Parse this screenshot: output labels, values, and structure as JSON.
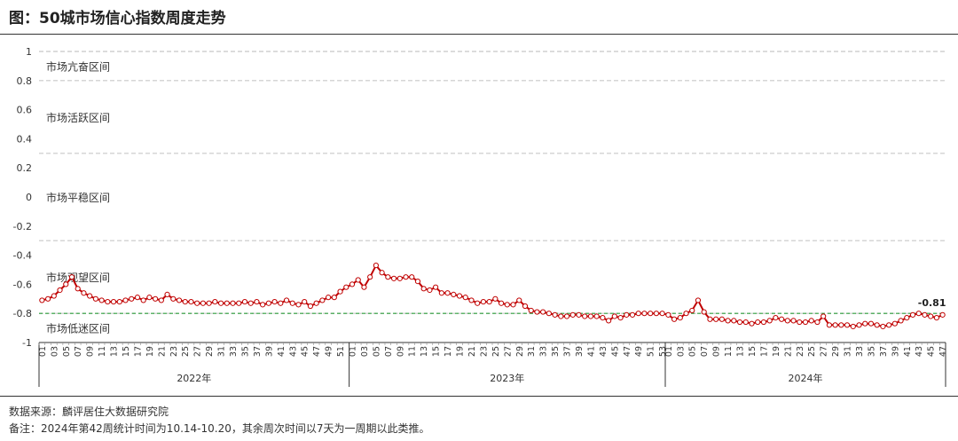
{
  "title": "图：50城市场信心指数周度走势",
  "source": "数据来源：麟评居住大数据研究院",
  "note": "备注：2024年第42周统计时间为10.14-10.20，其余周次时间以7天为一周期以此类推。",
  "colors": {
    "series": "#c00000",
    "marker_fill": "#ffffff",
    "reference": "#2e9e3c",
    "grid": "#c8c8c8"
  },
  "chart_data": {
    "type": "line",
    "title": "",
    "xlabel": "",
    "ylabel": "",
    "ylim": [
      -1,
      1
    ],
    "yticks": [
      {
        "value": 1,
        "label": "1"
      },
      {
        "value": 0.8,
        "label": "0.8"
      },
      {
        "value": 0.6,
        "label": "0.6"
      },
      {
        "value": 0.4,
        "label": "0.4"
      },
      {
        "value": 0.2,
        "label": "0.2"
      },
      {
        "value": 0,
        "label": "0"
      },
      {
        "value": -0.2,
        "label": "-0.2"
      },
      {
        "value": -0.4,
        "label": "-0.4"
      },
      {
        "value": -0.6,
        "label": "-0.6"
      },
      {
        "value": -0.8,
        "label": "-0.8"
      },
      {
        "value": -1,
        "label": "-1"
      }
    ],
    "grid": true,
    "zone_boundaries": [
      1,
      0.8,
      0.3,
      -0.3,
      -0.8
    ],
    "reference_line": -0.8,
    "zones": [
      {
        "label": "市场亢奋区间",
        "value": 0.9
      },
      {
        "label": "市场活跃区间",
        "value": 0.55
      },
      {
        "label": "市场平稳区间",
        "value": 0
      },
      {
        "label": "市场观望区间",
        "value": -0.55
      },
      {
        "label": "市场低迷区间",
        "value": -0.9
      }
    ],
    "year_groups": [
      {
        "label": "2022年",
        "weeks": 52
      },
      {
        "label": "2023年",
        "weeks": 53
      },
      {
        "label": "2024年",
        "weeks": 47
      }
    ],
    "x": [
      "01",
      "02",
      "03",
      "04",
      "05",
      "06",
      "07",
      "08",
      "09",
      "10",
      "11",
      "12",
      "13",
      "14",
      "15",
      "16",
      "17",
      "18",
      "19",
      "20",
      "21",
      "22",
      "23",
      "24",
      "25",
      "26",
      "27",
      "28",
      "29",
      "30",
      "31",
      "32",
      "33",
      "34",
      "35",
      "36",
      "37",
      "38",
      "39",
      "40",
      "41",
      "42",
      "43",
      "44",
      "45",
      "46",
      "47",
      "48",
      "49",
      "50",
      "51",
      "52",
      "01",
      "02",
      "03",
      "04",
      "05",
      "06",
      "07",
      "08",
      "09",
      "10",
      "11",
      "12",
      "13",
      "14",
      "15",
      "16",
      "17",
      "18",
      "19",
      "20",
      "21",
      "22",
      "23",
      "24",
      "25",
      "26",
      "27",
      "28",
      "29",
      "30",
      "31",
      "32",
      "33",
      "34",
      "35",
      "36",
      "37",
      "38",
      "39",
      "40",
      "41",
      "42",
      "43",
      "44",
      "45",
      "46",
      "47",
      "48",
      "49",
      "50",
      "51",
      "52",
      "53",
      "01",
      "02",
      "03",
      "04",
      "05",
      "06",
      "07",
      "08",
      "09",
      "10",
      "11",
      "12",
      "13",
      "14",
      "15",
      "16",
      "17",
      "18",
      "19",
      "20",
      "21",
      "22",
      "23",
      "24",
      "25",
      "26",
      "27",
      "28",
      "29",
      "30",
      "31",
      "32",
      "33",
      "34",
      "35",
      "36",
      "37",
      "38",
      "39",
      "40",
      "41",
      "42",
      "43",
      "44",
      "45",
      "46",
      "47"
    ],
    "series": [
      {
        "values": [
          -0.71,
          -0.7,
          -0.68,
          -0.64,
          -0.6,
          -0.55,
          -0.63,
          -0.66,
          -0.68,
          -0.7,
          -0.71,
          -0.72,
          -0.72,
          -0.72,
          -0.71,
          -0.7,
          -0.69,
          -0.71,
          -0.69,
          -0.7,
          -0.71,
          -0.67,
          -0.7,
          -0.71,
          -0.72,
          -0.72,
          -0.73,
          -0.73,
          -0.73,
          -0.72,
          -0.73,
          -0.73,
          -0.73,
          -0.73,
          -0.72,
          -0.73,
          -0.72,
          -0.74,
          -0.73,
          -0.72,
          -0.73,
          -0.71,
          -0.73,
          -0.74,
          -0.72,
          -0.75,
          -0.73,
          -0.71,
          -0.69,
          -0.69,
          -0.65,
          -0.62,
          -0.6,
          -0.57,
          -0.62,
          -0.55,
          -0.47,
          -0.52,
          -0.55,
          -0.56,
          -0.56,
          -0.55,
          -0.55,
          -0.58,
          -0.63,
          -0.64,
          -0.62,
          -0.66,
          -0.66,
          -0.67,
          -0.68,
          -0.69,
          -0.71,
          -0.73,
          -0.72,
          -0.72,
          -0.7,
          -0.73,
          -0.74,
          -0.74,
          -0.71,
          -0.75,
          -0.78,
          -0.79,
          -0.79,
          -0.8,
          -0.81,
          -0.82,
          -0.82,
          -0.81,
          -0.81,
          -0.82,
          -0.82,
          -0.82,
          -0.83,
          -0.85,
          -0.82,
          -0.83,
          -0.81,
          -0.81,
          -0.8,
          -0.8,
          -0.8,
          -0.8,
          -0.8,
          -0.81,
          -0.84,
          -0.83,
          -0.8,
          -0.78,
          -0.71,
          -0.79,
          -0.84,
          -0.84,
          -0.84,
          -0.85,
          -0.85,
          -0.86,
          -0.86,
          -0.87,
          -0.86,
          -0.86,
          -0.85,
          -0.83,
          -0.84,
          -0.85,
          -0.85,
          -0.86,
          -0.86,
          -0.85,
          -0.86,
          -0.82,
          -0.88,
          -0.88,
          -0.88,
          -0.88,
          -0.89,
          -0.88,
          -0.87,
          -0.87,
          -0.88,
          -0.89,
          -0.88,
          -0.87,
          -0.85,
          -0.83,
          -0.81,
          -0.8,
          -0.81,
          -0.82,
          -0.83,
          -0.81
        ]
      }
    ],
    "annotation": {
      "label": "-0.81"
    }
  }
}
